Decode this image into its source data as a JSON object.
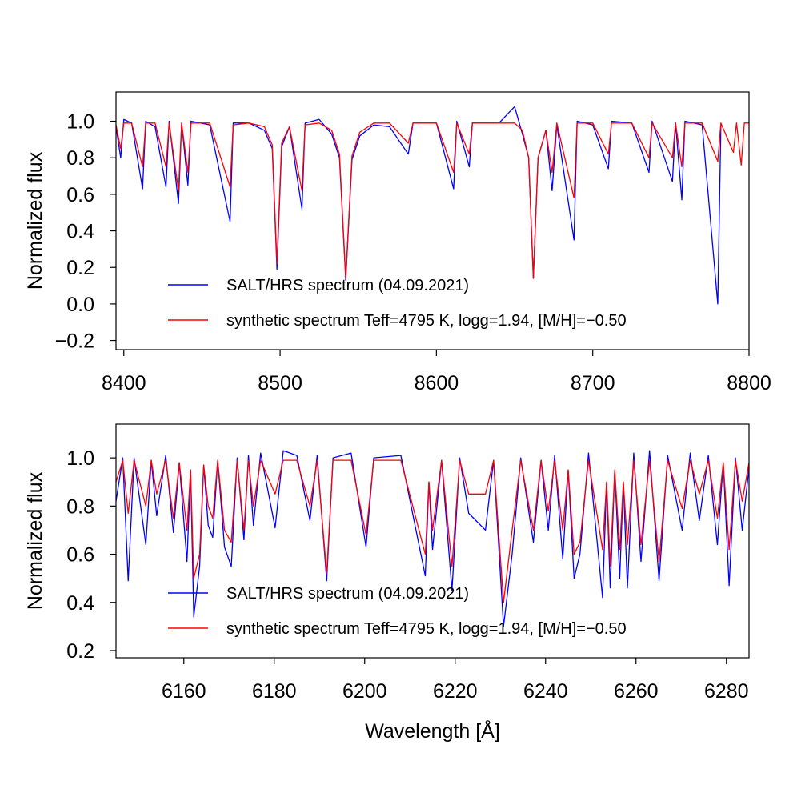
{
  "chart_data": [
    {
      "type": "line",
      "ylabel": "Normalized flux",
      "xlim": [
        8395,
        8800
      ],
      "ylim": [
        -0.25,
        1.16
      ],
      "xticks": [
        8400,
        8500,
        8600,
        8700,
        8800
      ],
      "yticks": [
        {
          "value": -0.2,
          "label": "−0.2"
        },
        {
          "value": 0,
          "label": "0.0"
        },
        {
          "value": 0.2,
          "label": "0.2"
        },
        {
          "value": 0.4,
          "label": "0.4"
        },
        {
          "value": 0.6,
          "label": "0.6"
        },
        {
          "value": 0.8,
          "label": "0.8"
        },
        {
          "value": 1,
          "label": "1.0"
        }
      ],
      "legend": "lower left",
      "x": [
        8395,
        8398,
        8400,
        8405,
        8412,
        8414,
        8420,
        8427,
        8429,
        8435,
        8437,
        8441,
        8443,
        8455,
        8468,
        8470,
        8480,
        8490,
        8495,
        8498,
        8501,
        8506,
        8514,
        8516,
        8525,
        8533,
        8538,
        8542,
        8546,
        8551,
        8560,
        8570,
        8582,
        8585,
        8600,
        8611,
        8613,
        8621,
        8623,
        8640,
        8650,
        8655,
        8659,
        8662,
        8665,
        8670,
        8674,
        8677,
        8688,
        8690,
        8700,
        8710,
        8712,
        8725,
        8736,
        8738,
        8751,
        8753,
        8757,
        8759,
        8770,
        8780,
        8782,
        8790,
        8792,
        8795,
        8797,
        8800
      ],
      "series": [
        {
          "name": "SALT/HRS spectrum (04.09.2021)",
          "color": "#0000ff",
          "values": [
            0.97,
            0.8,
            1.01,
            0.99,
            0.63,
            1.0,
            0.97,
            0.64,
            1.0,
            0.55,
            0.99,
            0.65,
            1.0,
            0.98,
            0.45,
            0.99,
            0.99,
            0.95,
            0.85,
            0.19,
            0.86,
            0.97,
            0.52,
            0.99,
            1.01,
            0.93,
            0.8,
            0.13,
            0.79,
            0.92,
            0.98,
            0.97,
            0.82,
            0.99,
            0.99,
            0.63,
            1.0,
            0.75,
            0.99,
            0.99,
            1.08,
            0.93,
            0.8,
            0.14,
            0.8,
            0.95,
            0.62,
            0.98,
            0.35,
            1.0,
            0.98,
            0.74,
            1.0,
            0.99,
            0.72,
            1.0,
            0.67,
            0.99,
            0.57,
            1.0,
            0.98,
            0.0,
            0.98,
            null,
            null,
            null,
            null,
            null
          ]
        },
        {
          "name": "synthetic spectrum Teff=4795 K, logg=1.94, [M/H]=−0.50",
          "color": "#ff0000",
          "values": [
            0.98,
            0.85,
            0.99,
            0.99,
            0.75,
            0.99,
            0.99,
            0.75,
            0.99,
            0.62,
            0.99,
            0.72,
            0.99,
            0.99,
            0.64,
            0.98,
            0.99,
            0.97,
            0.87,
            0.22,
            0.88,
            0.97,
            0.62,
            0.98,
            0.99,
            0.95,
            0.82,
            0.14,
            0.81,
            0.94,
            0.99,
            0.99,
            0.88,
            0.99,
            0.99,
            0.72,
            0.99,
            0.82,
            0.99,
            0.99,
            0.99,
            0.95,
            0.8,
            0.14,
            0.8,
            0.95,
            0.72,
            0.99,
            0.58,
            0.99,
            0.99,
            0.82,
            0.99,
            0.99,
            0.8,
            0.99,
            0.8,
            0.99,
            0.75,
            0.99,
            0.99,
            0.78,
            0.99,
            0.83,
            0.99,
            0.76,
            0.99,
            0.99
          ]
        }
      ]
    },
    {
      "type": "line",
      "ylabel": "Normalized flux",
      "xlabel": "Wavelength [Å]",
      "xlim": [
        6145,
        6285
      ],
      "ylim": [
        0.17,
        1.14
      ],
      "xticks": [
        6160,
        6180,
        6200,
        6220,
        6240,
        6260,
        6280
      ],
      "yticks": [
        {
          "value": 0.2,
          "label": "0.2"
        },
        {
          "value": 0.4,
          "label": "0.4"
        },
        {
          "value": 0.6,
          "label": "0.6"
        },
        {
          "value": 0.8,
          "label": "0.8"
        },
        {
          "value": 1,
          "label": "1.0"
        }
      ],
      "legend": "lower left",
      "x": [
        6145,
        6146.5,
        6147.7,
        6149,
        6151.6,
        6152.8,
        6154,
        6156,
        6157.7,
        6159,
        6160.7,
        6161.5,
        6162.2,
        6163.5,
        6164.4,
        6165.4,
        6166.4,
        6167.5,
        6169,
        6170.5,
        6171.8,
        6173.3,
        6174.3,
        6175.4,
        6177,
        6180.2,
        6182,
        6185,
        6187.9,
        6189.5,
        6191.6,
        6193,
        6197,
        6200.3,
        6202,
        6208,
        6213.4,
        6214.2,
        6215,
        6217,
        6219.3,
        6221,
        6223,
        6226.7,
        6228.5,
        6230.7,
        6232.6,
        6234.5,
        6237.3,
        6239,
        6240.6,
        6242,
        6243.8,
        6245,
        6246.3,
        6247.6,
        6249.5,
        6252.6,
        6253.5,
        6254.3,
        6255.3,
        6256.4,
        6257.2,
        6258.1,
        6259.5,
        6261.1,
        6263,
        6265.1,
        6267,
        6270.2,
        6272,
        6274,
        6276,
        6278,
        6279.3,
        6280.6,
        6282,
        6283.5,
        6285
      ],
      "series": [
        {
          "name": "SALT/HRS spectrum (04.09.2021)",
          "color": "#0000ff",
          "values": [
            0.82,
            1.0,
            0.49,
            1.0,
            0.64,
            0.99,
            0.76,
            1.01,
            0.69,
            0.98,
            0.57,
            0.95,
            0.34,
            0.55,
            0.97,
            0.72,
            0.67,
            0.99,
            0.63,
            0.55,
            1.0,
            0.66,
            1.01,
            0.72,
            1.02,
            0.71,
            1.03,
            1.01,
            0.74,
            1.01,
            0.49,
            1.0,
            1.02,
            0.63,
            1.0,
            1.01,
            0.51,
            0.9,
            0.62,
            0.99,
            0.45,
            1.0,
            0.77,
            0.7,
            0.99,
            0.3,
            0.6,
            1.0,
            0.65,
            0.99,
            0.7,
            1.01,
            0.58,
            0.95,
            0.5,
            0.6,
            1.02,
            0.42,
            0.9,
            0.46,
            0.95,
            0.5,
            0.9,
            0.46,
            1.02,
            0.57,
            1.03,
            0.49,
            1.01,
            0.7,
            1.02,
            0.74,
            1.01,
            0.64,
            0.98,
            0.47,
            1.0,
            0.7,
            0.96
          ]
        },
        {
          "name": "synthetic spectrum Teff=4795 K, logg=1.94, [M/H]=−0.50",
          "color": "#ff0000",
          "values": [
            0.9,
            0.99,
            0.77,
            0.99,
            0.8,
            0.99,
            0.85,
            0.99,
            0.75,
            0.98,
            0.7,
            0.95,
            0.5,
            0.6,
            0.97,
            0.8,
            0.75,
            0.99,
            0.7,
            0.65,
            0.99,
            0.7,
            0.99,
            0.8,
            0.99,
            0.85,
            0.99,
            0.99,
            0.8,
            0.99,
            0.52,
            0.99,
            0.99,
            0.68,
            0.99,
            0.99,
            0.6,
            0.9,
            0.7,
            0.99,
            0.55,
            0.99,
            0.85,
            0.85,
            0.99,
            0.4,
            0.7,
            0.99,
            0.7,
            0.99,
            0.78,
            0.99,
            0.7,
            0.95,
            0.6,
            0.65,
            0.99,
            0.62,
            0.9,
            0.55,
            0.95,
            0.62,
            0.9,
            0.64,
            0.99,
            0.64,
            0.99,
            0.57,
            0.99,
            0.79,
            0.99,
            0.85,
            0.99,
            0.75,
            0.98,
            0.62,
            0.99,
            0.82,
            0.98
          ]
        }
      ]
    }
  ]
}
